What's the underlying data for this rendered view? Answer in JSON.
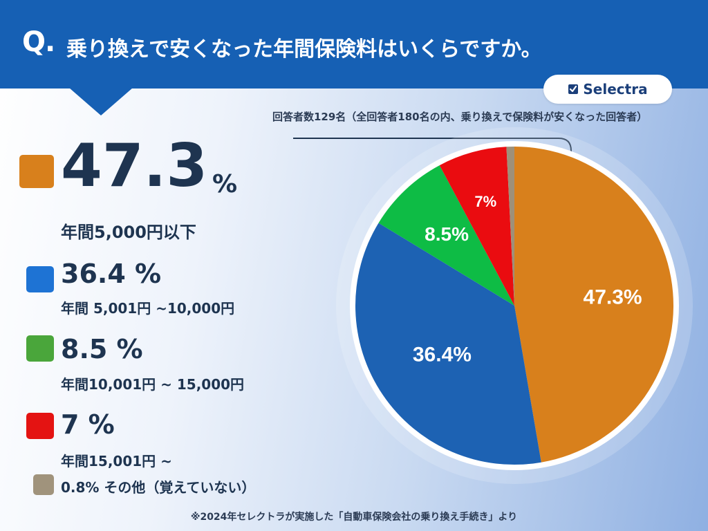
{
  "header": {
    "q_mark": "Q.",
    "question": "乗り換えで安くなった年間保険料はいくらですか。"
  },
  "brand": {
    "name": "Selectra",
    "icon": "check-box-icon"
  },
  "note": "回答者数129名（全回答者180名の内、乗り換えで保険料が安くなった回答者）",
  "legend": [
    {
      "percent_num": "47.3",
      "percent_sign": "%",
      "label": "年間5,000円以下"
    },
    {
      "percent": "36.4 %",
      "label": "年間 5,001円 ~10,000円"
    },
    {
      "percent": "8.5 %",
      "label": "年間10,001円 ~ 15,000円"
    },
    {
      "percent": "7 %",
      "label": "年間15,001円 ~"
    },
    {
      "label": "0.8% その他（覚えていない）"
    }
  ],
  "footer": "※2024年セレクトラが実施した「自動車保険会社の乗り換え手続き」より",
  "chart_data": {
    "type": "pie",
    "title": "乗り換えで安くなった年間保険料はいくらですか。",
    "start": "12 o'clock",
    "direction": "clockwise",
    "slices": [
      {
        "category": "年間5,000円以下",
        "value": 47.3,
        "label": "47.3%",
        "color": "#d8801c"
      },
      {
        "category": "年間 5,001円 ~10,000円",
        "value": 36.4,
        "label": "36.4%",
        "color": "#1d62b3"
      },
      {
        "category": "年間10,001円 ~ 15,000円",
        "value": 8.5,
        "label": "8.5%",
        "color": "#0ebc45"
      },
      {
        "category": "年間15,001円 ~",
        "value": 7,
        "label": "7%",
        "color": "#ea0c10"
      },
      {
        "category": "その他（覚えていない）",
        "value": 0.8,
        "label": "",
        "color": "#9e9079"
      }
    ],
    "legend_swatch_colors": [
      "#d8801c",
      "#1e73d4",
      "#4aa63b",
      "#e41312",
      "#a0937c"
    ]
  }
}
